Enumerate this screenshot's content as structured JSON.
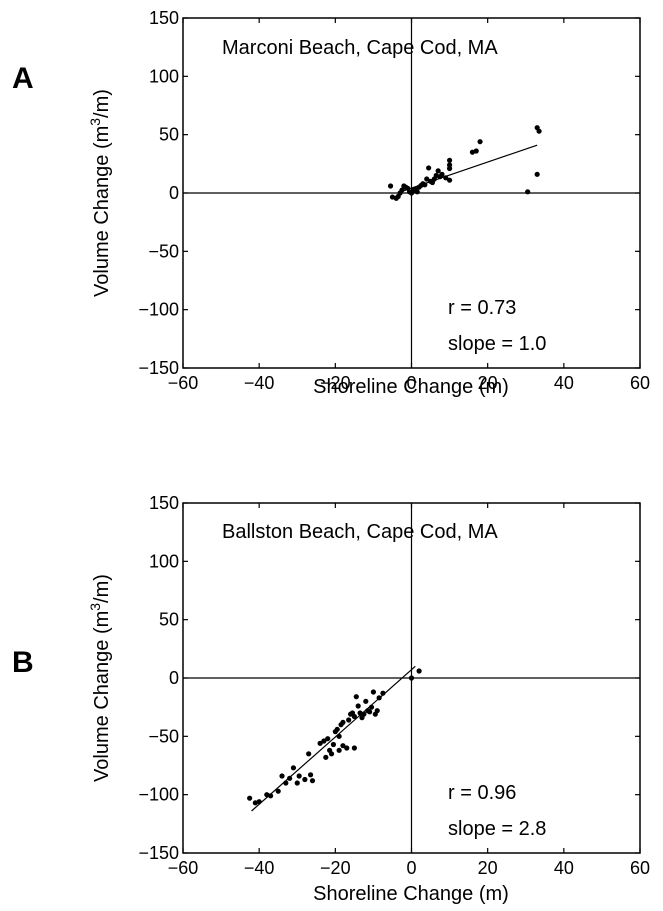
{
  "chart_data": [
    {
      "type": "scatter",
      "panel_label": "A",
      "title": "Marconi Beach, Cape Cod, MA",
      "xlabel": "Shoreline Change (m)",
      "ylabel_prefix": "Volume Change (m",
      "ylabel_sup": "3",
      "ylabel_suffix": "/m)",
      "xlim": [
        -60,
        60
      ],
      "ylim": [
        -150,
        150
      ],
      "xticks": [
        -60,
        -40,
        -20,
        0,
        20,
        40,
        60
      ],
      "yticks": [
        -150,
        -100,
        -50,
        0,
        50,
        100,
        150
      ],
      "r_text": "r = 0.73",
      "slope_text": "slope = 1.0",
      "fit_line": [
        [
          -2,
          2
        ],
        [
          33,
          41
        ]
      ],
      "points": [
        [
          -5.5,
          6
        ],
        [
          -5,
          -3.5
        ],
        [
          -4,
          -4.5
        ],
        [
          -3.5,
          -3
        ],
        [
          -3,
          0
        ],
        [
          -2.5,
          2.5
        ],
        [
          -2,
          6
        ],
        [
          -1.5,
          5
        ],
        [
          -1,
          4
        ],
        [
          -0.5,
          1
        ],
        [
          0,
          0
        ],
        [
          0.5,
          2.5
        ],
        [
          1,
          3
        ],
        [
          1.5,
          1
        ],
        [
          2,
          5
        ],
        [
          2.5,
          6.5
        ],
        [
          3,
          8
        ],
        [
          3.5,
          7
        ],
        [
          4,
          12
        ],
        [
          4.5,
          21.5
        ],
        [
          5,
          10
        ],
        [
          5.5,
          9
        ],
        [
          6,
          12
        ],
        [
          6.5,
          15
        ],
        [
          7,
          19
        ],
        [
          7.5,
          14
        ],
        [
          8,
          16
        ],
        [
          9,
          13
        ],
        [
          10,
          21
        ],
        [
          10,
          24
        ],
        [
          10,
          28
        ],
        [
          10,
          11
        ],
        [
          16,
          35
        ],
        [
          17,
          36
        ],
        [
          18,
          44
        ],
        [
          30.5,
          1
        ],
        [
          33,
          56
        ],
        [
          33.5,
          53
        ],
        [
          33,
          16
        ]
      ]
    },
    {
      "type": "scatter",
      "panel_label": "B",
      "title": "Ballston Beach, Cape Cod, MA",
      "xlabel": "Shoreline Change (m)",
      "ylabel_prefix": "Volume Change (m",
      "ylabel_sup": "3",
      "ylabel_suffix": "/m)",
      "xlim": [
        -60,
        60
      ],
      "ylim": [
        -150,
        150
      ],
      "xticks": [
        -60,
        -40,
        -20,
        0,
        20,
        40,
        60
      ],
      "yticks": [
        -150,
        -100,
        -50,
        0,
        50,
        100,
        150
      ],
      "r_text": "r = 0.96",
      "slope_text": "slope = 2.8",
      "fit_line": [
        [
          -42,
          -114
        ],
        [
          1,
          10
        ]
      ],
      "points": [
        [
          -42.5,
          -103
        ],
        [
          -41,
          -107
        ],
        [
          -40,
          -106
        ],
        [
          -38,
          -100
        ],
        [
          -37,
          -101
        ],
        [
          -35,
          -97
        ],
        [
          -34,
          -84
        ],
        [
          -33,
          -90
        ],
        [
          -32,
          -86
        ],
        [
          -31,
          -77
        ],
        [
          -30,
          -90
        ],
        [
          -29.5,
          -84
        ],
        [
          -28,
          -87
        ],
        [
          -27,
          -65
        ],
        [
          -26.5,
          -83
        ],
        [
          -26,
          -88
        ],
        [
          -24,
          -56
        ],
        [
          -23,
          -54
        ],
        [
          -22.5,
          -68
        ],
        [
          -22,
          -52
        ],
        [
          -21.5,
          -62
        ],
        [
          -21,
          -65
        ],
        [
          -20.5,
          -57
        ],
        [
          -20,
          -46
        ],
        [
          -19.5,
          -44
        ],
        [
          -19,
          -50
        ],
        [
          -19,
          -62
        ],
        [
          -18.5,
          -40
        ],
        [
          -18,
          -38
        ],
        [
          -18,
          -58
        ],
        [
          -17,
          -60
        ],
        [
          -16.5,
          -36
        ],
        [
          -16,
          -31
        ],
        [
          -15.5,
          -30
        ],
        [
          -15,
          -60
        ],
        [
          -15,
          -33
        ],
        [
          -14.5,
          -16
        ],
        [
          -14,
          -24
        ],
        [
          -13.5,
          -30
        ],
        [
          -13,
          -34
        ],
        [
          -12.5,
          -31
        ],
        [
          -12,
          -20
        ],
        [
          -11.5,
          -28
        ],
        [
          -11,
          -29
        ],
        [
          -10.5,
          -25
        ],
        [
          -10,
          -12
        ],
        [
          -9.5,
          -31
        ],
        [
          -9,
          -28
        ],
        [
          -8.5,
          -17
        ],
        [
          -7.5,
          -13
        ],
        [
          0,
          0
        ],
        [
          2,
          6
        ]
      ]
    }
  ]
}
